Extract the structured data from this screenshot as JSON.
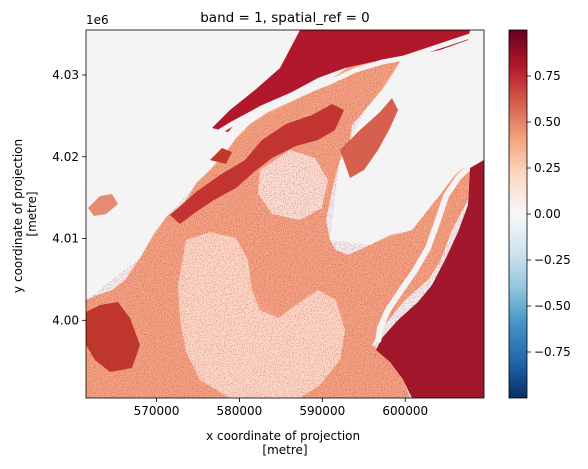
{
  "chart_data": {
    "type": "heatmap",
    "title": "band = 1, spatial_ref = 0",
    "xlabel": "x coordinate of projection\n[metre]",
    "ylabel": "y coordinate of projection\n[metre]",
    "y_offset_label": "1e6",
    "xlim": [
      561500,
      609500
    ],
    "ylim": [
      3990500,
      4035500
    ],
    "x_ticks": [
      570000,
      580000,
      590000,
      600000
    ],
    "x_tick_labels": [
      "570000",
      "580000",
      "590000",
      "600000"
    ],
    "y_ticks": [
      4000000,
      4010000,
      4020000,
      4030000
    ],
    "y_tick_labels": [
      "4.00",
      "4.01",
      "4.02",
      "4.03"
    ],
    "colorbar": {
      "colormap": "RdBu_r",
      "range": [
        -1.0,
        1.0
      ],
      "ticks": [
        -0.75,
        -0.5,
        -0.25,
        0.0,
        0.25,
        0.5,
        0.75
      ],
      "tick_labels": [
        "−0.75",
        "−0.50",
        "−0.25",
        "0.00",
        "0.25",
        "0.50",
        "0.75"
      ]
    },
    "grid": false,
    "legend": "none"
  }
}
